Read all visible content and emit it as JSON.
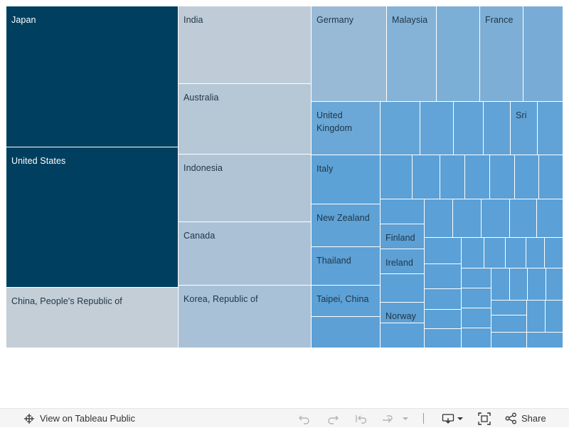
{
  "chart_data": {
    "type": "treemap",
    "categories": [
      "Japan",
      "United States",
      "China, People's Republic of",
      "India",
      "Australia",
      "Indonesia",
      "Canada",
      "Korea, Republic of",
      "Germany",
      "Malaysia",
      "France",
      "United Kingdom",
      "Sri",
      "Italy",
      "New Zealand",
      "Finland",
      "Ireland",
      "Thailand",
      "Norway",
      "Taipei, China"
    ],
    "tiles": [
      {
        "label": "Japan",
        "value": 47.9,
        "color": "#003f5f"
      },
      {
        "label": "United States",
        "value": 47.3,
        "color": "#003f5f"
      },
      {
        "label": "China, People's Republic of",
        "value": 20.9,
        "color": "#c3ced7"
      },
      {
        "label": "India",
        "value": 20.4,
        "color": "#bfccd7"
      },
      {
        "label": "Australia",
        "value": 18.5,
        "color": "#b6c7d6"
      },
      {
        "label": "Indonesia",
        "value": 17.6,
        "color": "#b0c4d6"
      },
      {
        "label": "Canada",
        "value": 16.8,
        "color": "#abc1d6"
      },
      {
        "label": "Korea, Republic of",
        "value": 16.3,
        "color": "#a9c1d6"
      },
      {
        "label": "Germany",
        "value": 14.1,
        "color": "#98bad6"
      },
      {
        "label": "Malaysia",
        "value": 9.4,
        "color": "#85b2d7"
      },
      {
        "label": "",
        "value": 8.2,
        "color": "#7cafd6"
      },
      {
        "label": "France",
        "value": 8.2,
        "color": "#7caed6"
      },
      {
        "label": "",
        "value": 7.5,
        "color": "#78acd6"
      },
      {
        "label": "United Kingdom",
        "value": 7.3,
        "color": "#6ba8d7"
      },
      {
        "label": "",
        "value": 4.3,
        "color": "#64a5d7"
      },
      {
        "label": "",
        "value": 3.6,
        "color": "#62a4d7"
      },
      {
        "label": "",
        "value": 3.2,
        "color": "#62a3d7"
      },
      {
        "label": "",
        "value": 3.0,
        "color": "#62a3d7"
      },
      {
        "label": "Sri",
        "value": 2.8,
        "color": "#61a3d7"
      },
      {
        "label": "",
        "value": 2.7,
        "color": "#61a3d7"
      },
      {
        "label": "Italy",
        "value": 6.3,
        "color": "#5da2d6"
      },
      {
        "label": "New Zealand",
        "value": 5.5,
        "color": "#5ea2d6"
      },
      {
        "label": "Thailand",
        "value": 5.0,
        "color": "#5da1d6"
      },
      {
        "label": "Taipei, China",
        "value": 4.4,
        "color": "#5da1d6"
      },
      {
        "label": "",
        "value": 4.0,
        "color": "#5ca0d6"
      },
      {
        "label": "Finland",
        "value": 2.1,
        "color": "#5ca0d5"
      },
      {
        "label": "Ireland",
        "value": 2.1,
        "color": "#5ca0d5"
      },
      {
        "label": "Norway",
        "value": 2.0,
        "color": "#5ca0d5"
      }
    ]
  },
  "toolbar": {
    "view_label": "View on Tableau Public",
    "share_label": "Share"
  },
  "colors": {
    "dark_tile": "#003f5f",
    "toolbar_bg": "#f5f5f5",
    "toolbar_text": "#333333"
  }
}
